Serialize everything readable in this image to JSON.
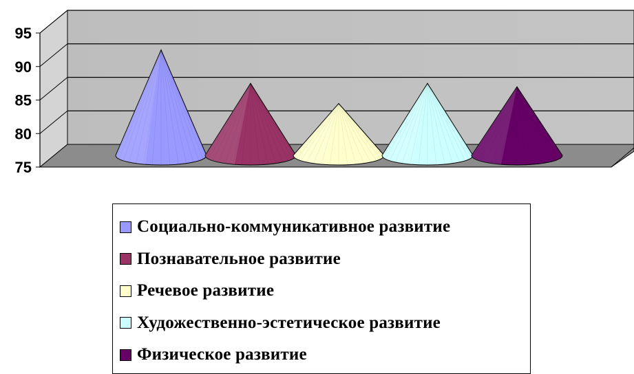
{
  "chart_data": {
    "type": "bar",
    "bar_shape": "cone-3d",
    "categories": [
      "Социально-коммуникативное развитие",
      "Познавательное развитие",
      "Речевое развитие",
      "Художественно-эстетическое развитие",
      "Физическое развитие"
    ],
    "values": [
      91,
      86,
      83,
      86,
      85.5
    ],
    "colors": [
      "#9999ff",
      "#993366",
      "#ffffcc",
      "#ccffff",
      "#660066"
    ],
    "y_ticks": [
      "75",
      "80",
      "85",
      "90",
      "95"
    ],
    "ylim": [
      75,
      95
    ],
    "grid": true,
    "legend_position": "bottom",
    "title": "",
    "xlabel": "",
    "ylabel": ""
  }
}
